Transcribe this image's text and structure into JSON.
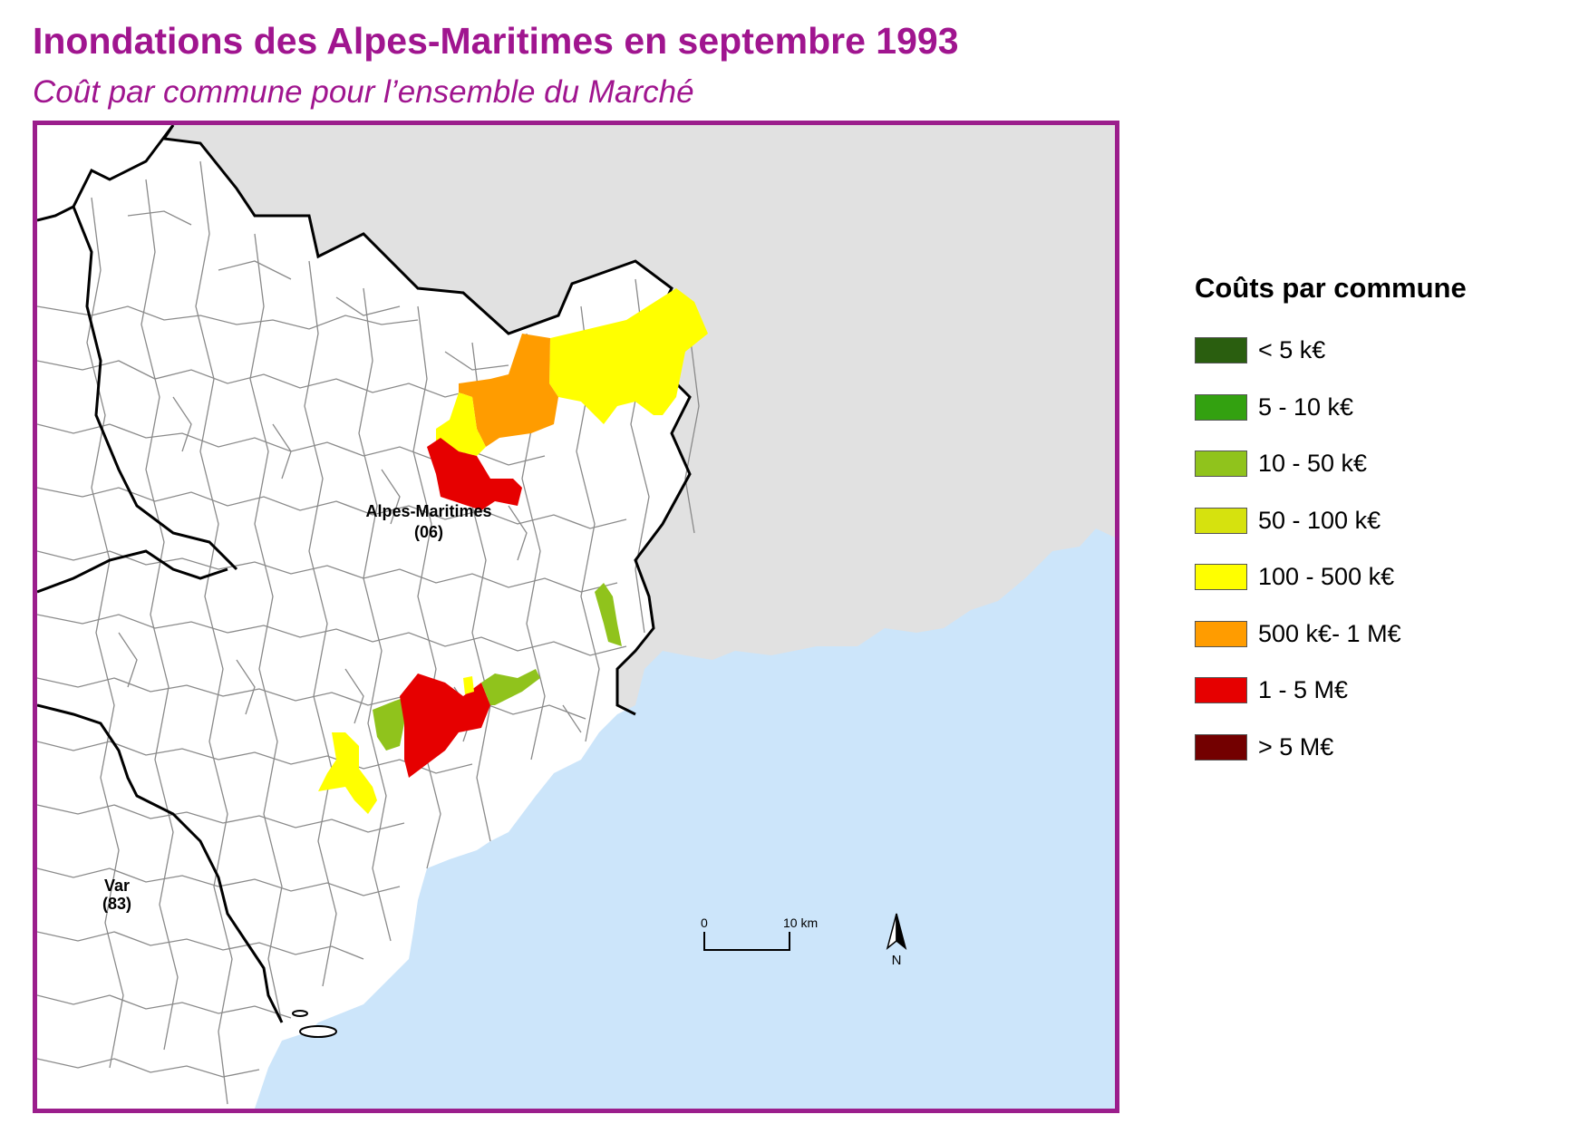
{
  "title": "Inondations des Alpes-Maritimes en septembre 1993",
  "subtitle": "Coût par commune pour l’ensemble du Marché",
  "map": {
    "department_label": {
      "name": "Alpes-Maritimes",
      "code": "(06)"
    },
    "neighbor_label": {
      "name": "Var",
      "code": "(83)"
    },
    "scale_bar": {
      "start": "0",
      "end": "10 km"
    },
    "north_arrow": {
      "label": "N",
      "icon": "north-arrow-icon"
    },
    "colors": {
      "sea": "#cce5fa",
      "foreign": "#e1e1e1",
      "land": "#ffffff",
      "commune_border": "#8a8a8a",
      "department_border": "#000000",
      "frame": "#9b1e8c"
    }
  },
  "legend": {
    "title": "Coûts par commune",
    "items": [
      {
        "label": "< 5 k€",
        "color": "#2a5e0f"
      },
      {
        "label": "5 - 10 k€",
        "color": "#33a110"
      },
      {
        "label": "10 - 50 k€",
        "color": "#90c31c"
      },
      {
        "label": "50 - 100 k€",
        "color": "#d6e20e"
      },
      {
        "label": "100 - 500 k€",
        "color": "#ffff00"
      },
      {
        "label": "500 k€- 1 M€",
        "color": "#ff9c00"
      },
      {
        "label": "1 - 5 M€",
        "color": "#e60000"
      },
      {
        "label": "> 5 M€",
        "color": "#730000"
      }
    ]
  }
}
